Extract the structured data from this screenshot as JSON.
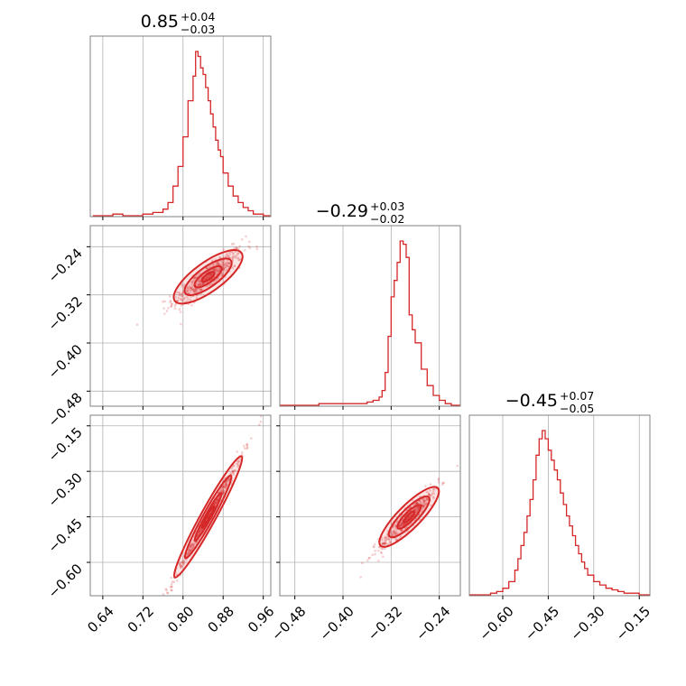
{
  "chart_data": {
    "type": "corner",
    "color": "#d62728",
    "grid": true,
    "parameters": [
      {
        "title_value": "0.85",
        "title_plus": "+0.04",
        "title_minus": "−0.03",
        "range": [
          0.615,
          0.975
        ],
        "ticks": [
          0.64,
          0.72,
          0.8,
          0.88,
          0.96
        ],
        "tick_labels": [
          "0.64",
          "0.72",
          "0.80",
          "0.88",
          "0.96"
        ],
        "mean": 0.85,
        "sd": 0.035,
        "hist": {
          "x": [
            0.62,
            0.64,
            0.66,
            0.68,
            0.7,
            0.72,
            0.74,
            0.76,
            0.77,
            0.78,
            0.79,
            0.8,
            0.81,
            0.82,
            0.825,
            0.83,
            0.835,
            0.84,
            0.845,
            0.85,
            0.855,
            0.86,
            0.865,
            0.87,
            0.875,
            0.88,
            0.89,
            0.9,
            0.91,
            0.92,
            0.93,
            0.94,
            0.96,
            0.975
          ],
          "counts": [
            0,
            0,
            1,
            0,
            0,
            1,
            2,
            4,
            8,
            18,
            30,
            48,
            70,
            85,
            100,
            97,
            90,
            86,
            78,
            70,
            62,
            54,
            46,
            40,
            36,
            26,
            18,
            12,
            8,
            5,
            3,
            1,
            0,
            0
          ]
        }
      },
      {
        "title_value": "−0.29",
        "title_plus": "+0.03",
        "title_minus": "−0.02",
        "range": [
          -0.505,
          -0.205
        ],
        "ticks": [
          -0.48,
          -0.4,
          -0.32,
          -0.24
        ],
        "tick_labels": [
          "−0.48",
          "−0.40",
          "−0.32",
          "−0.24"
        ],
        "mean": -0.29,
        "sd": 0.025,
        "hist": {
          "x": [
            -0.505,
            -0.48,
            -0.46,
            -0.44,
            -0.42,
            -0.4,
            -0.38,
            -0.36,
            -0.35,
            -0.34,
            -0.335,
            -0.33,
            -0.325,
            -0.32,
            -0.315,
            -0.31,
            -0.305,
            -0.3,
            -0.295,
            -0.29,
            -0.285,
            -0.28,
            -0.27,
            -0.26,
            -0.25,
            -0.24,
            -0.23,
            -0.22,
            -0.205
          ],
          "counts": [
            0,
            0,
            0,
            1,
            1,
            1,
            1,
            2,
            3,
            5,
            9,
            20,
            42,
            66,
            76,
            87,
            100,
            98,
            90,
            55,
            46,
            38,
            22,
            12,
            6,
            3,
            1,
            0,
            0
          ]
        }
      },
      {
        "title_value": "−0.45",
        "title_plus": "+0.07",
        "title_minus": "−0.05",
        "range": [
          -0.71,
          -0.115
        ],
        "ticks": [
          -0.6,
          -0.45,
          -0.3,
          -0.15
        ],
        "tick_labels": [
          "−0.60",
          "−0.45",
          "−0.30",
          "−0.15"
        ],
        "mean": -0.45,
        "sd": 0.06,
        "hist": {
          "x": [
            -0.71,
            -0.67,
            -0.64,
            -0.62,
            -0.6,
            -0.58,
            -0.56,
            -0.55,
            -0.54,
            -0.53,
            -0.52,
            -0.51,
            -0.5,
            -0.49,
            -0.48,
            -0.47,
            -0.46,
            -0.45,
            -0.44,
            -0.43,
            -0.42,
            -0.41,
            -0.4,
            -0.39,
            -0.38,
            -0.37,
            -0.36,
            -0.35,
            -0.34,
            -0.33,
            -0.32,
            -0.3,
            -0.28,
            -0.26,
            -0.24,
            -0.22,
            -0.2,
            -0.18,
            -0.15,
            -0.115
          ],
          "counts": [
            0,
            0,
            1,
            2,
            4,
            8,
            15,
            22,
            30,
            38,
            48,
            58,
            70,
            85,
            95,
            100,
            95,
            88,
            82,
            76,
            70,
            62,
            55,
            48,
            42,
            36,
            30,
            25,
            20,
            16,
            12,
            8,
            6,
            4,
            3,
            2,
            1,
            1,
            0,
            0
          ]
        }
      }
    ],
    "pairs": [
      {
        "row": 1,
        "col": 0,
        "slope": 0.6,
        "spread": 0.011,
        "n": 450
      },
      {
        "row": 2,
        "col": 0,
        "slope": 3.0,
        "spread": 0.012,
        "n": 450
      },
      {
        "row": 2,
        "col": 1,
        "slope": 2.0,
        "spread": 0.018,
        "n": 450
      }
    ]
  }
}
